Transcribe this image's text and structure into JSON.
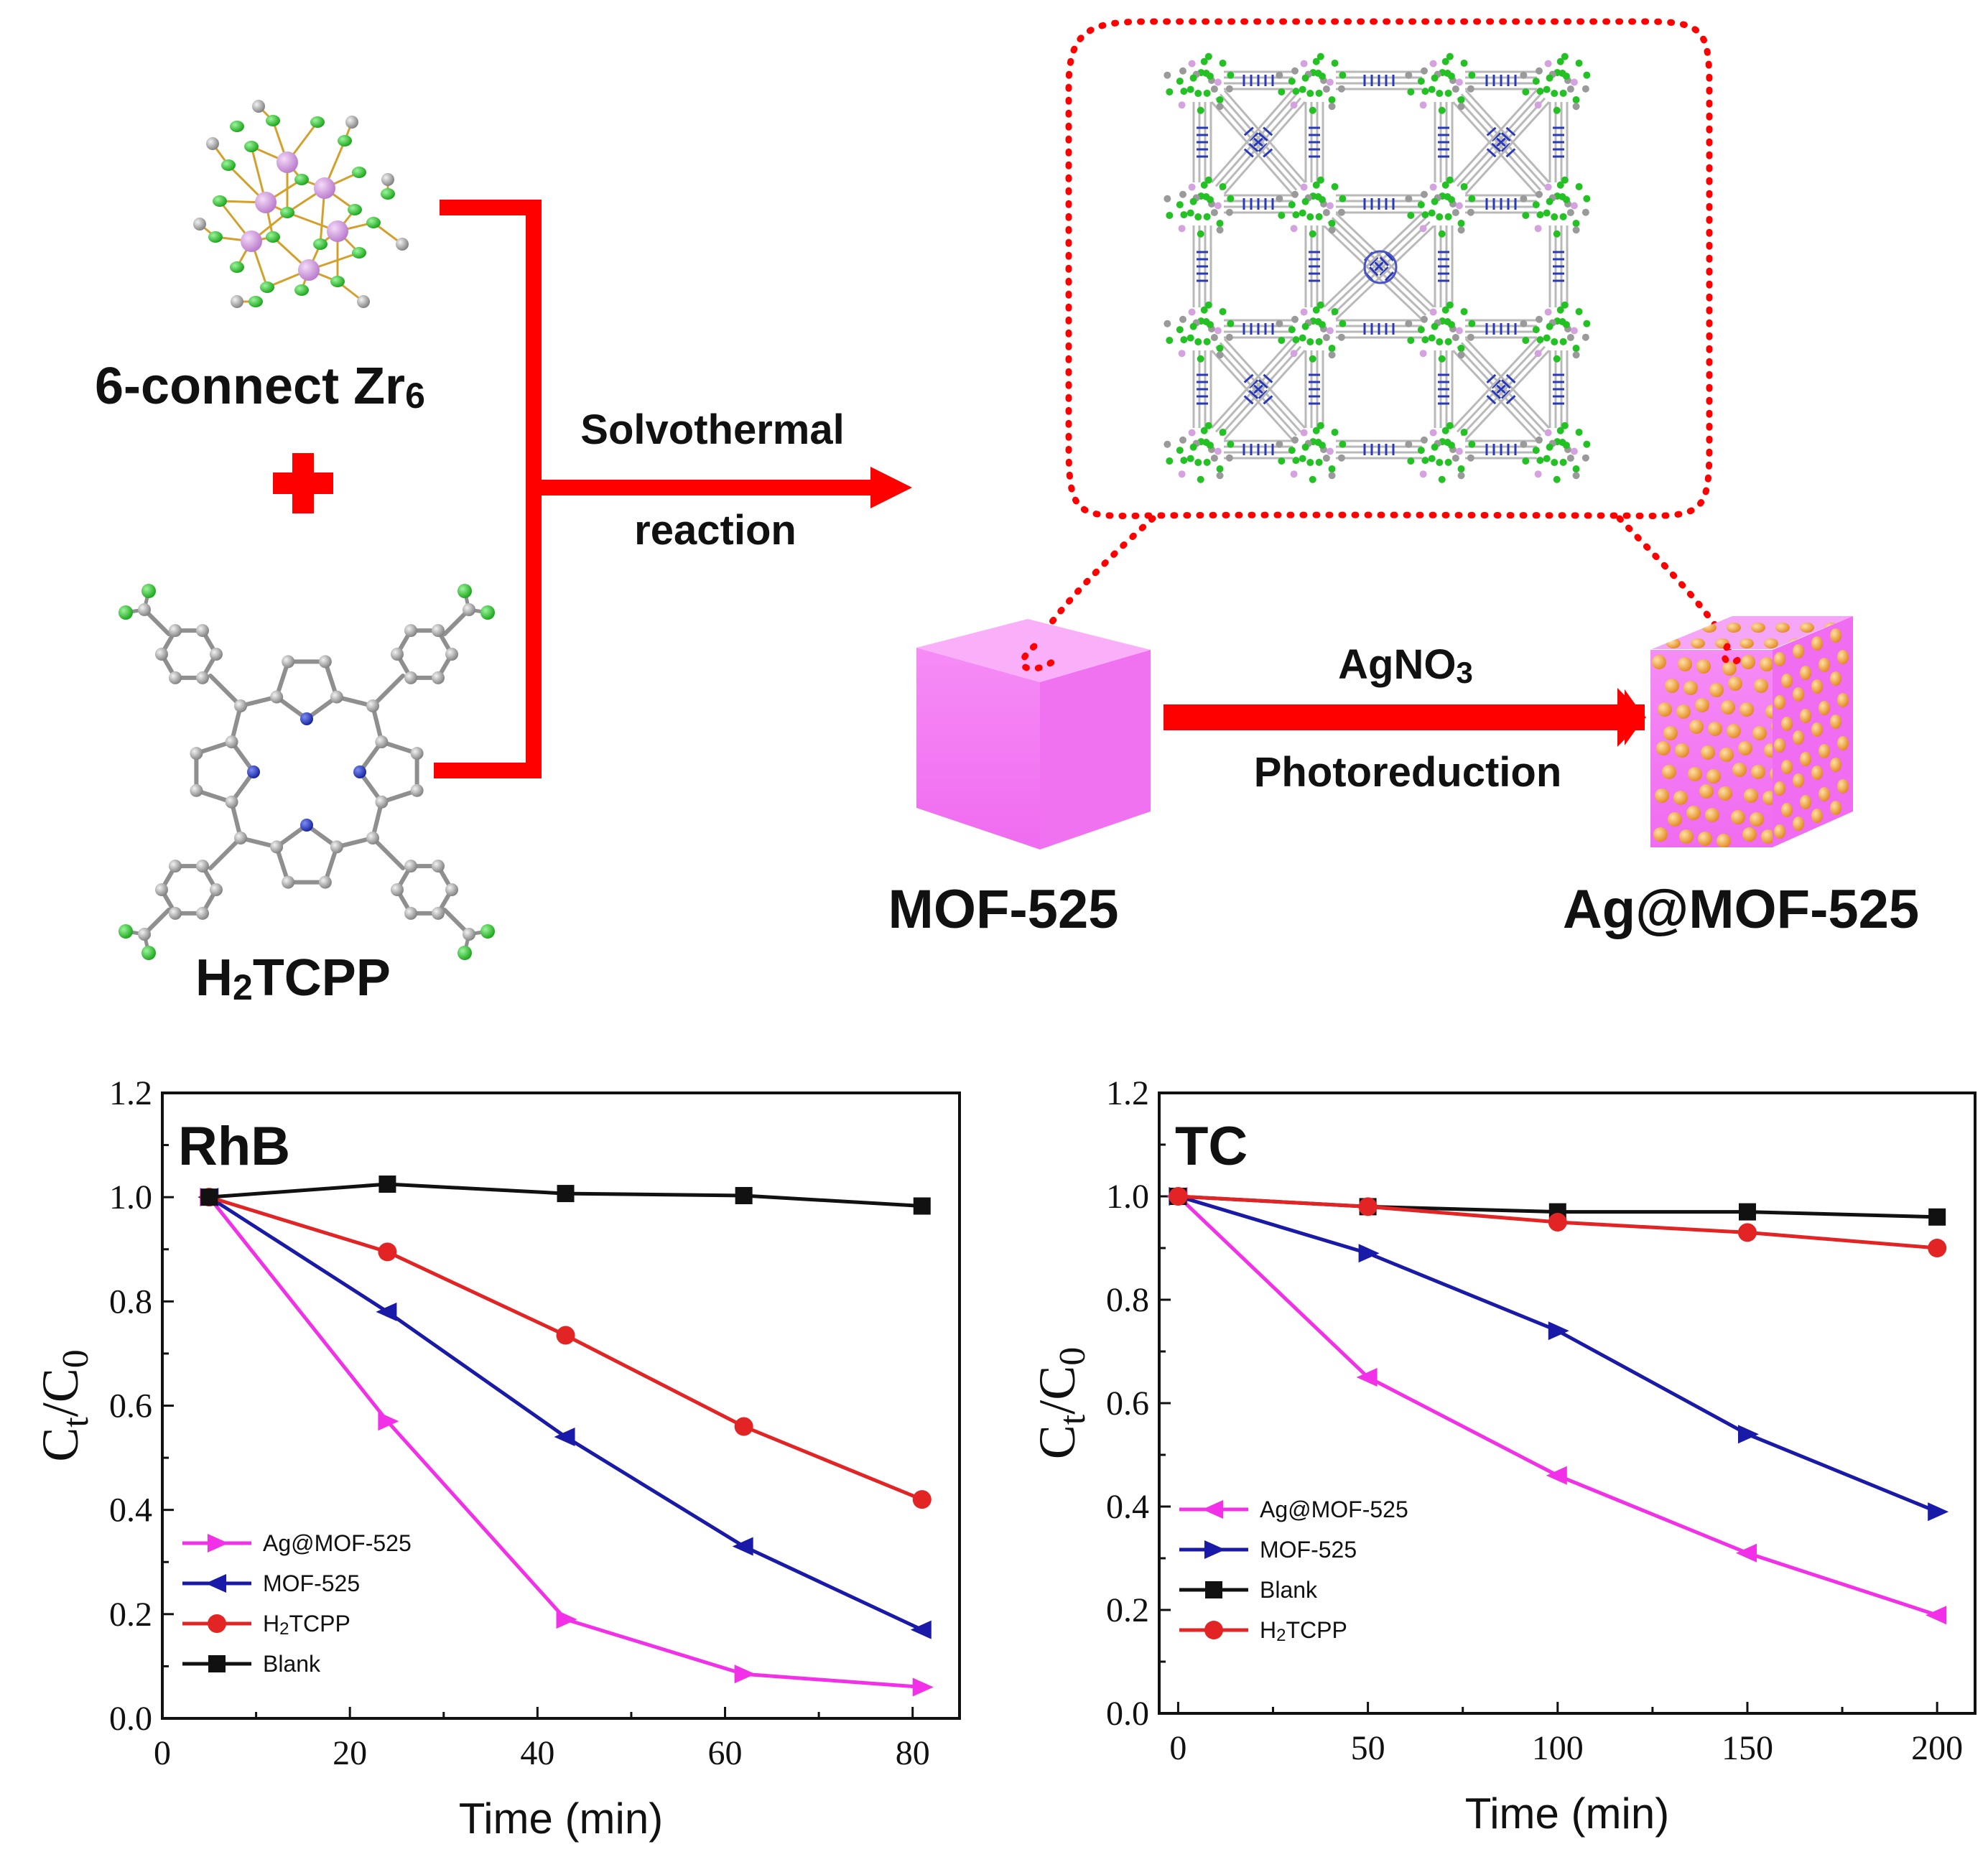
{
  "scheme": {
    "zr_label": "6-connect Zr",
    "zr_sub": "6",
    "linker_label_pre": "H",
    "linker_label_sub": "2",
    "linker_label_post": "TCPP",
    "arrow1_line1": "Solvothermal",
    "arrow1_line2": "reaction",
    "mof_label": "MOF-525",
    "ag_label": "Ag@MOF-525",
    "arrow2_top_pre": "AgNO",
    "arrow2_top_sub": "3",
    "arrow2_bottom": "Photoreduction",
    "colors": {
      "arrow": "#ff0000",
      "cube": "#f57ef5",
      "particle": "#f4a43a",
      "zr": "#c98ed8",
      "oxygen": "#21c421",
      "carbon": "#9a9a9a",
      "nitrogen": "#1d2fa8"
    }
  },
  "chart_data": [
    {
      "type": "line",
      "title": "RhB",
      "xlabel": "Time (min)",
      "ylabel": "Ct/C0",
      "ylabel_main": "C",
      "ylabel_sub1": "t",
      "ylabel_slash": "/C",
      "ylabel_sub2": "0",
      "xlim": [
        0,
        85
      ],
      "ylim": [
        0,
        1.2
      ],
      "xticks": [
        "0",
        "20",
        "40",
        "60",
        "80"
      ],
      "xtick_values": [
        0,
        20,
        40,
        60,
        80
      ],
      "yticks": [
        "0.0",
        "0.2",
        "0.4",
        "0.6",
        "0.8",
        "1.0",
        "1.2"
      ],
      "ytick_values": [
        0,
        0.2,
        0.4,
        0.6,
        0.8,
        1.0,
        1.2
      ],
      "legend_position": "bottom-left",
      "series": [
        {
          "name": "Ag@MOF-525",
          "legend_pre": "Ag@MOF-525",
          "color": "#f230e8",
          "marker": "triangle-right",
          "x": [
            5,
            24,
            43,
            62,
            81
          ],
          "y": [
            1.0,
            0.57,
            0.19,
            0.085,
            0.06
          ]
        },
        {
          "name": "MOF-525",
          "legend_pre": "MOF-525",
          "color": "#1a1aa8",
          "marker": "triangle-left",
          "x": [
            5,
            24,
            43,
            62,
            81
          ],
          "y": [
            1.0,
            0.78,
            0.54,
            0.33,
            0.17
          ]
        },
        {
          "name": "H2TCPP",
          "legend_pre": "H",
          "legend_sub": "2",
          "legend_post": "TCPP",
          "color": "#e32424",
          "marker": "circle",
          "x": [
            5,
            24,
            43,
            62,
            81
          ],
          "y": [
            1.0,
            0.895,
            0.735,
            0.56,
            0.42
          ]
        },
        {
          "name": "Blank",
          "legend_pre": "Blank",
          "color": "#111111",
          "marker": "square",
          "x": [
            5,
            24,
            43,
            62,
            81
          ],
          "y": [
            1.0,
            1.025,
            1.007,
            1.003,
            0.983
          ]
        }
      ]
    },
    {
      "type": "line",
      "title": "TC",
      "xlabel": "Time (min)",
      "ylabel": "Ct/C0",
      "ylabel_main": "C",
      "ylabel_sub1": "t",
      "ylabel_slash": "/C",
      "ylabel_sub2": "0",
      "xlim": [
        -5,
        210
      ],
      "ylim": [
        0,
        1.2
      ],
      "xticks": [
        "0",
        "50",
        "100",
        "150",
        "200"
      ],
      "xtick_values": [
        0,
        50,
        100,
        150,
        200
      ],
      "yticks": [
        "0.0",
        "0.2",
        "0.4",
        "0.6",
        "0.8",
        "1.0",
        "1.2"
      ],
      "ytick_values": [
        0,
        0.2,
        0.4,
        0.6,
        0.8,
        1.0,
        1.2
      ],
      "legend_position": "bottom-left",
      "series": [
        {
          "name": "Ag@MOF-525",
          "legend_pre": "Ag@MOF-525",
          "color": "#f230e8",
          "marker": "triangle-left",
          "x": [
            0,
            50,
            100,
            150,
            200
          ],
          "y": [
            1.0,
            0.65,
            0.46,
            0.31,
            0.19
          ]
        },
        {
          "name": "MOF-525",
          "legend_pre": "MOF-525",
          "color": "#1a1aa8",
          "marker": "triangle-right",
          "x": [
            0,
            50,
            100,
            150,
            200
          ],
          "y": [
            1.0,
            0.89,
            0.74,
            0.54,
            0.39
          ]
        },
        {
          "name": "Blank",
          "legend_pre": "Blank",
          "color": "#111111",
          "marker": "square",
          "x": [
            0,
            50,
            100,
            150,
            200
          ],
          "y": [
            1.0,
            0.98,
            0.97,
            0.97,
            0.96
          ]
        },
        {
          "name": "H2TCPP",
          "legend_pre": "H",
          "legend_sub": "2",
          "legend_post": "TCPP",
          "color": "#e32424",
          "marker": "circle",
          "x": [
            0,
            50,
            100,
            150,
            200
          ],
          "y": [
            1.0,
            0.98,
            0.95,
            0.93,
            0.9
          ]
        }
      ]
    }
  ]
}
